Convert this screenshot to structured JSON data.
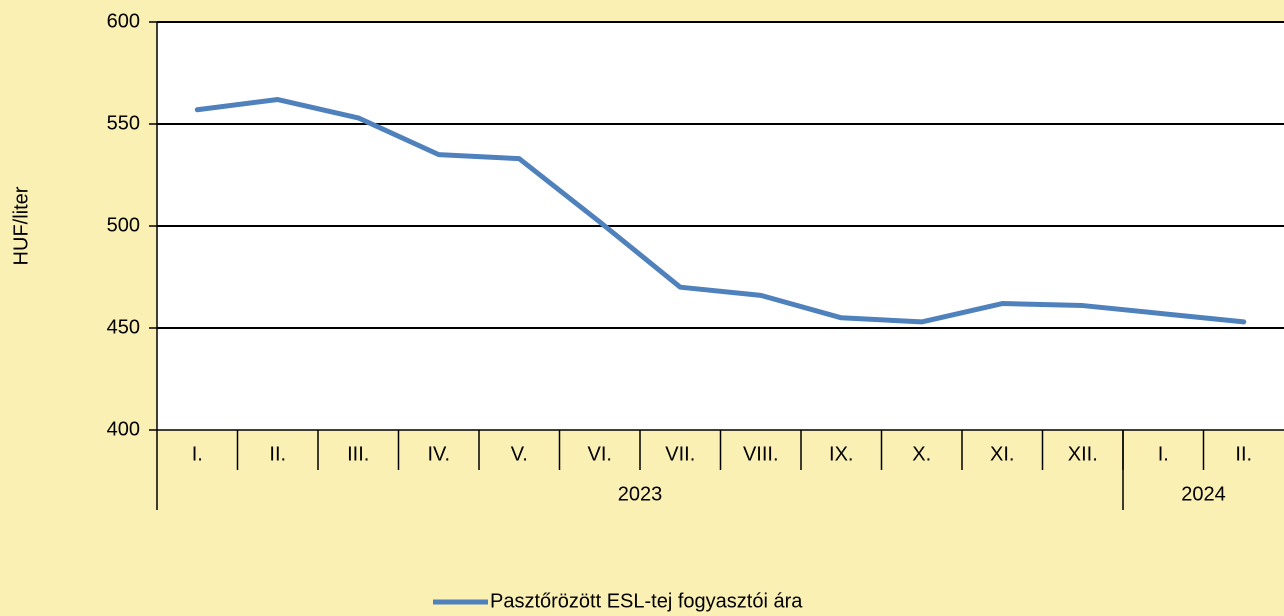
{
  "chart_data": {
    "type": "line",
    "ylabel": "HUF/liter",
    "categories": [
      "I.",
      "II.",
      "III.",
      "IV.",
      "V.",
      "VI.",
      "VII.",
      "VIII.",
      "IX.",
      "X.",
      "XI.",
      "XII.",
      "I.",
      "II."
    ],
    "category_groups": [
      {
        "label": "2023",
        "size": 12
      },
      {
        "label": "2024",
        "size": 2
      }
    ],
    "series": [
      {
        "name": "Pasztőrözött ESL-tej fogyasztói ára",
        "color": "#4f81bd",
        "values": [
          557,
          562,
          553,
          535,
          533,
          502,
          470,
          466,
          455,
          453,
          462,
          461,
          457,
          453
        ]
      }
    ],
    "ylim": [
      400,
      600
    ],
    "yticks": [
      400,
      450,
      500,
      550,
      600
    ],
    "grid": true,
    "legend": "bottom"
  }
}
